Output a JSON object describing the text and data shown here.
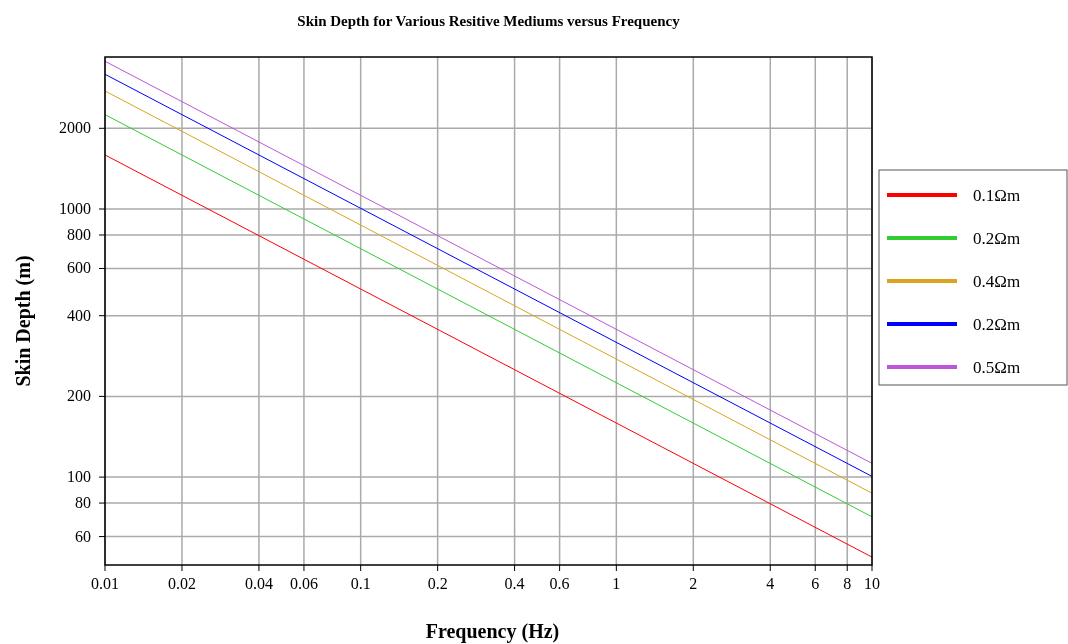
{
  "chart_data": {
    "type": "line",
    "title": "Skin Depth for Various Resitive Mediums versus Frequency",
    "xlabel": "Frequency (Hz)",
    "ylabel": "Skin Depth (m)",
    "x": [
      0.01,
      10
    ],
    "series": [
      {
        "name": "0.1Ωm",
        "color": "#ff0000",
        "values": [
          1591,
          50.3
        ]
      },
      {
        "name": "0.2Ωm",
        "color": "#33cc33",
        "values": [
          2250,
          71.1
        ]
      },
      {
        "name": "0.4Ωm",
        "color": "#daa520",
        "values": [
          2756,
          87.1
        ]
      },
      {
        "name": "0.2Ωm",
        "color": "#0000ff",
        "values": [
          3181,
          100.6
        ]
      },
      {
        "name": "0.5Ωm",
        "color": "#bf55d9",
        "values": [
          3557,
          112.5
        ]
      }
    ],
    "log": "xy",
    "xlim": [
      0.01,
      10
    ],
    "ylim": [
      47,
      3690
    ],
    "xticks": [
      0.01,
      0.02,
      0.04,
      0.06,
      0.1,
      0.2,
      0.4,
      0.6,
      1,
      2,
      4,
      6,
      8,
      10
    ],
    "yticks": [
      60,
      80,
      100,
      200,
      400,
      600,
      800,
      1000,
      2000
    ],
    "grid": true,
    "legend": "right",
    "marker": "none",
    "line_style": "solid"
  }
}
